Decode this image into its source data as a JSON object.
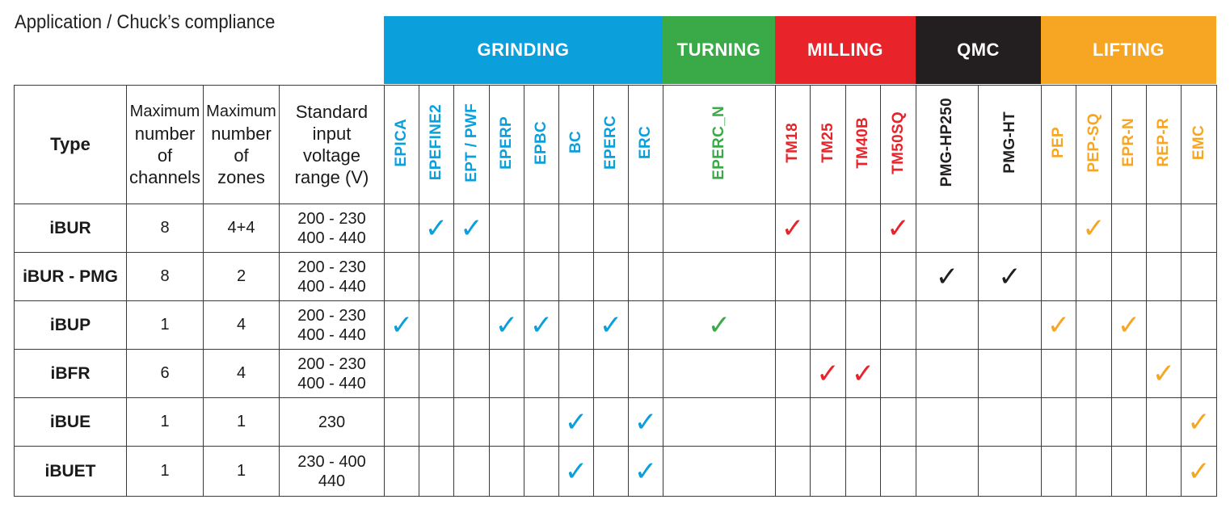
{
  "title": "Application / Chuck’s compliance",
  "colors": {
    "grinding": "#0b9fdc",
    "turning": "#3aaa48",
    "milling": "#e8232a",
    "qmc": "#231f20",
    "lifting": "#f6a623",
    "border": "#3a3a3a"
  },
  "categories": [
    {
      "key": "grinding",
      "label": "GRINDING",
      "color": "#0b9fdc"
    },
    {
      "key": "turning",
      "label": "TURNING",
      "color": "#3aaa48"
    },
    {
      "key": "milling",
      "label": "MILLING",
      "color": "#e8232a"
    },
    {
      "key": "qmc",
      "label": "QMC",
      "color": "#231f20"
    },
    {
      "key": "lifting",
      "label": "LIFTING",
      "color": "#f6a623"
    }
  ],
  "headers": {
    "type": "Type",
    "channels": [
      "Maximum",
      "number",
      "of",
      "channels"
    ],
    "zones": [
      "Maximum",
      "number",
      "of",
      "zones"
    ],
    "voltage": [
      "Standard",
      "input",
      "voltage",
      "range (V)"
    ]
  },
  "applications": [
    {
      "label": "EPICA",
      "category": "grinding",
      "color": "#0b9fdc"
    },
    {
      "label": "EPEFINE2",
      "category": "grinding",
      "color": "#0b9fdc"
    },
    {
      "label": "EPT / PWF",
      "category": "grinding",
      "color": "#0b9fdc"
    },
    {
      "label": "EPERP",
      "category": "grinding",
      "color": "#0b9fdc"
    },
    {
      "label": "EPBC",
      "category": "grinding",
      "color": "#0b9fdc"
    },
    {
      "label": "BC",
      "category": "grinding",
      "color": "#0b9fdc"
    },
    {
      "label": "EPERC",
      "category": "grinding",
      "color": "#0b9fdc"
    },
    {
      "label": "ERC",
      "category": "grinding",
      "color": "#0b9fdc"
    },
    {
      "label": "EPERC_N",
      "category": "turning",
      "color": "#3aaa48"
    },
    {
      "label": "TM18",
      "category": "milling",
      "color": "#e8232a"
    },
    {
      "label": "TM25",
      "category": "milling",
      "color": "#e8232a"
    },
    {
      "label": "TM40B",
      "category": "milling",
      "color": "#e8232a"
    },
    {
      "label": "TM50SQ",
      "category": "milling",
      "color": "#e8232a"
    },
    {
      "label": "PMG-HP250",
      "category": "qmc",
      "color": "#231f20"
    },
    {
      "label": "PMG-HT",
      "category": "qmc",
      "color": "#231f20"
    },
    {
      "label": "PEP",
      "category": "lifting",
      "color": "#f6a623"
    },
    {
      "label": "PEP-SQ",
      "category": "lifting",
      "color": "#f6a623"
    },
    {
      "label": "EPR-N",
      "category": "lifting",
      "color": "#f6a623"
    },
    {
      "label": "REP-R",
      "category": "lifting",
      "color": "#f6a623"
    },
    {
      "label": "EMC",
      "category": "lifting",
      "color": "#f6a623"
    }
  ],
  "check_symbol": "✓",
  "rows": [
    {
      "type": "iBUR",
      "channels": "8",
      "zones": "4+4",
      "voltage": [
        "200 - 230",
        "400 - 440"
      ],
      "checks": [
        false,
        true,
        true,
        false,
        false,
        false,
        false,
        false,
        false,
        true,
        false,
        false,
        true,
        false,
        false,
        false,
        true,
        false,
        false,
        false
      ]
    },
    {
      "type": "iBUR - PMG",
      "channels": "8",
      "zones": "2",
      "voltage": [
        "200 - 230",
        "400 - 440"
      ],
      "checks": [
        false,
        false,
        false,
        false,
        false,
        false,
        false,
        false,
        false,
        false,
        false,
        false,
        false,
        true,
        true,
        false,
        false,
        false,
        false,
        false
      ]
    },
    {
      "type": "iBUP",
      "channels": "1",
      "zones": "4",
      "voltage": [
        "200 - 230",
        "400 - 440"
      ],
      "checks": [
        true,
        false,
        false,
        true,
        true,
        false,
        true,
        false,
        true,
        false,
        false,
        false,
        false,
        false,
        false,
        true,
        false,
        true,
        false,
        false
      ]
    },
    {
      "type": "iBFR",
      "channels": "6",
      "zones": "4",
      "voltage": [
        "200 - 230",
        "400 - 440"
      ],
      "checks": [
        false,
        false,
        false,
        false,
        false,
        false,
        false,
        false,
        false,
        false,
        true,
        true,
        false,
        false,
        false,
        false,
        false,
        false,
        true,
        false
      ]
    },
    {
      "type": "iBUE",
      "channels": "1",
      "zones": "1",
      "voltage": [
        "230"
      ],
      "checks": [
        false,
        false,
        false,
        false,
        false,
        true,
        false,
        true,
        false,
        false,
        false,
        false,
        false,
        false,
        false,
        false,
        false,
        false,
        false,
        true
      ]
    },
    {
      "type": "iBUET",
      "channels": "1",
      "zones": "1",
      "voltage": [
        "230 - 400",
        "440"
      ],
      "checks": [
        false,
        false,
        false,
        false,
        false,
        true,
        false,
        true,
        false,
        false,
        false,
        false,
        false,
        false,
        false,
        false,
        false,
        false,
        false,
        true
      ]
    }
  ]
}
